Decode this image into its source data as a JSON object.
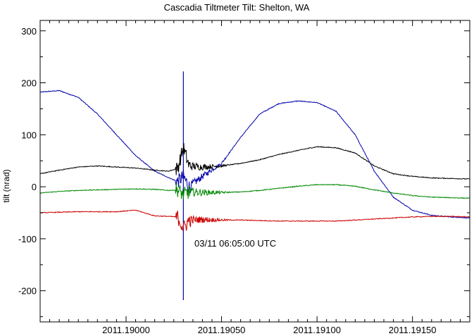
{
  "chart_data": {
    "type": "line",
    "title": "Cascadia Tiltmeter Tilt: Shelton, WA",
    "xlabel": "",
    "ylabel": "tilt (nrad)",
    "xlim": [
      2011.18955,
      2011.1918
    ],
    "ylim": [
      -260,
      320
    ],
    "x_ticks": [
      2011.19,
      2011.1905,
      2011.191,
      2011.1915
    ],
    "x_tick_labels": [
      "2011.19000",
      "2011.19050",
      "2011.19100",
      "2011.19150"
    ],
    "y_ticks": [
      -200,
      -100,
      0,
      100,
      200,
      300
    ],
    "y_tick_labels": [
      "-200",
      "-100",
      "0",
      "100",
      "200",
      "300"
    ],
    "annotation": {
      "text": "03/11 06:05:00 UTC",
      "x": 2011.19035,
      "y": -110
    },
    "grid": false,
    "legend": "none",
    "series": [
      {
        "color": "#0000aa",
        "x": [
          2011.18955,
          2011.18965,
          2011.18975,
          2011.18985,
          2011.18995,
          2011.19005,
          2011.19015,
          2011.19022,
          2011.19027,
          2011.1903,
          2011.19033,
          2011.1904,
          2011.1905,
          2011.1906,
          2011.1907,
          2011.1908,
          2011.1909,
          2011.191,
          2011.1911,
          2011.1912,
          2011.1913,
          2011.1914,
          2011.1915,
          2011.1916,
          2011.1917,
          2011.1918
        ],
        "y": [
          182,
          185,
          172,
          140,
          100,
          60,
          30,
          18,
          10,
          20,
          0,
          20,
          45,
          95,
          140,
          160,
          165,
          162,
          145,
          100,
          30,
          -20,
          -45,
          -55,
          -58,
          -60
        ],
        "spike": {
          "x": 2011.1903,
          "ymin": -218,
          "ymax": 222
        }
      },
      {
        "color": "#000000",
        "x": [
          2011.18955,
          2011.18965,
          2011.18975,
          2011.18985,
          2011.18995,
          2011.19005,
          2011.19015,
          2011.19022,
          2011.19027,
          2011.1903,
          2011.19033,
          2011.1904,
          2011.1905,
          2011.1906,
          2011.1907,
          2011.1908,
          2011.1909,
          2011.191,
          2011.1911,
          2011.1912,
          2011.1913,
          2011.1914,
          2011.1915,
          2011.1916,
          2011.1917,
          2011.1918
        ],
        "y": [
          25,
          32,
          38,
          40,
          38,
          36,
          32,
          30,
          35,
          75,
          40,
          38,
          40,
          45,
          52,
          62,
          70,
          77,
          75,
          65,
          40,
          25,
          20,
          17,
          16,
          15
        ]
      },
      {
        "color": "#008800",
        "x": [
          2011.18955,
          2011.18965,
          2011.18975,
          2011.18985,
          2011.18995,
          2011.19005,
          2011.19015,
          2011.19022,
          2011.19027,
          2011.1903,
          2011.19033,
          2011.1904,
          2011.1905,
          2011.1906,
          2011.1907,
          2011.1908,
          2011.1909,
          2011.191,
          2011.1911,
          2011.1912,
          2011.1913,
          2011.1914,
          2011.1915,
          2011.1916,
          2011.1917,
          2011.1918
        ],
        "y": [
          -12,
          -9,
          -7,
          -6,
          -5,
          -4,
          -5,
          -7,
          -6,
          -15,
          -10,
          -11,
          -11,
          -10,
          -7,
          -3,
          1,
          4,
          4,
          1,
          -6,
          -12,
          -17,
          -20,
          -21,
          -22
        ]
      },
      {
        "color": "#cc0000",
        "x": [
          2011.18955,
          2011.18965,
          2011.18975,
          2011.18985,
          2011.18995,
          2011.19005,
          2011.19015,
          2011.19022,
          2011.19027,
          2011.1903,
          2011.19033,
          2011.1904,
          2011.1905,
          2011.1906,
          2011.1907,
          2011.1908,
          2011.1909,
          2011.191,
          2011.1911,
          2011.1912,
          2011.1913,
          2011.1914,
          2011.1915,
          2011.1916,
          2011.1917,
          2011.1918
        ],
        "y": [
          -50,
          -49,
          -48,
          -48,
          -48,
          -45,
          -56,
          -57,
          -58,
          -80,
          -64,
          -63,
          -64,
          -64,
          -65,
          -66,
          -66,
          -66,
          -66,
          -64,
          -62,
          -60,
          -58,
          -57,
          -57,
          -58
        ]
      }
    ]
  }
}
